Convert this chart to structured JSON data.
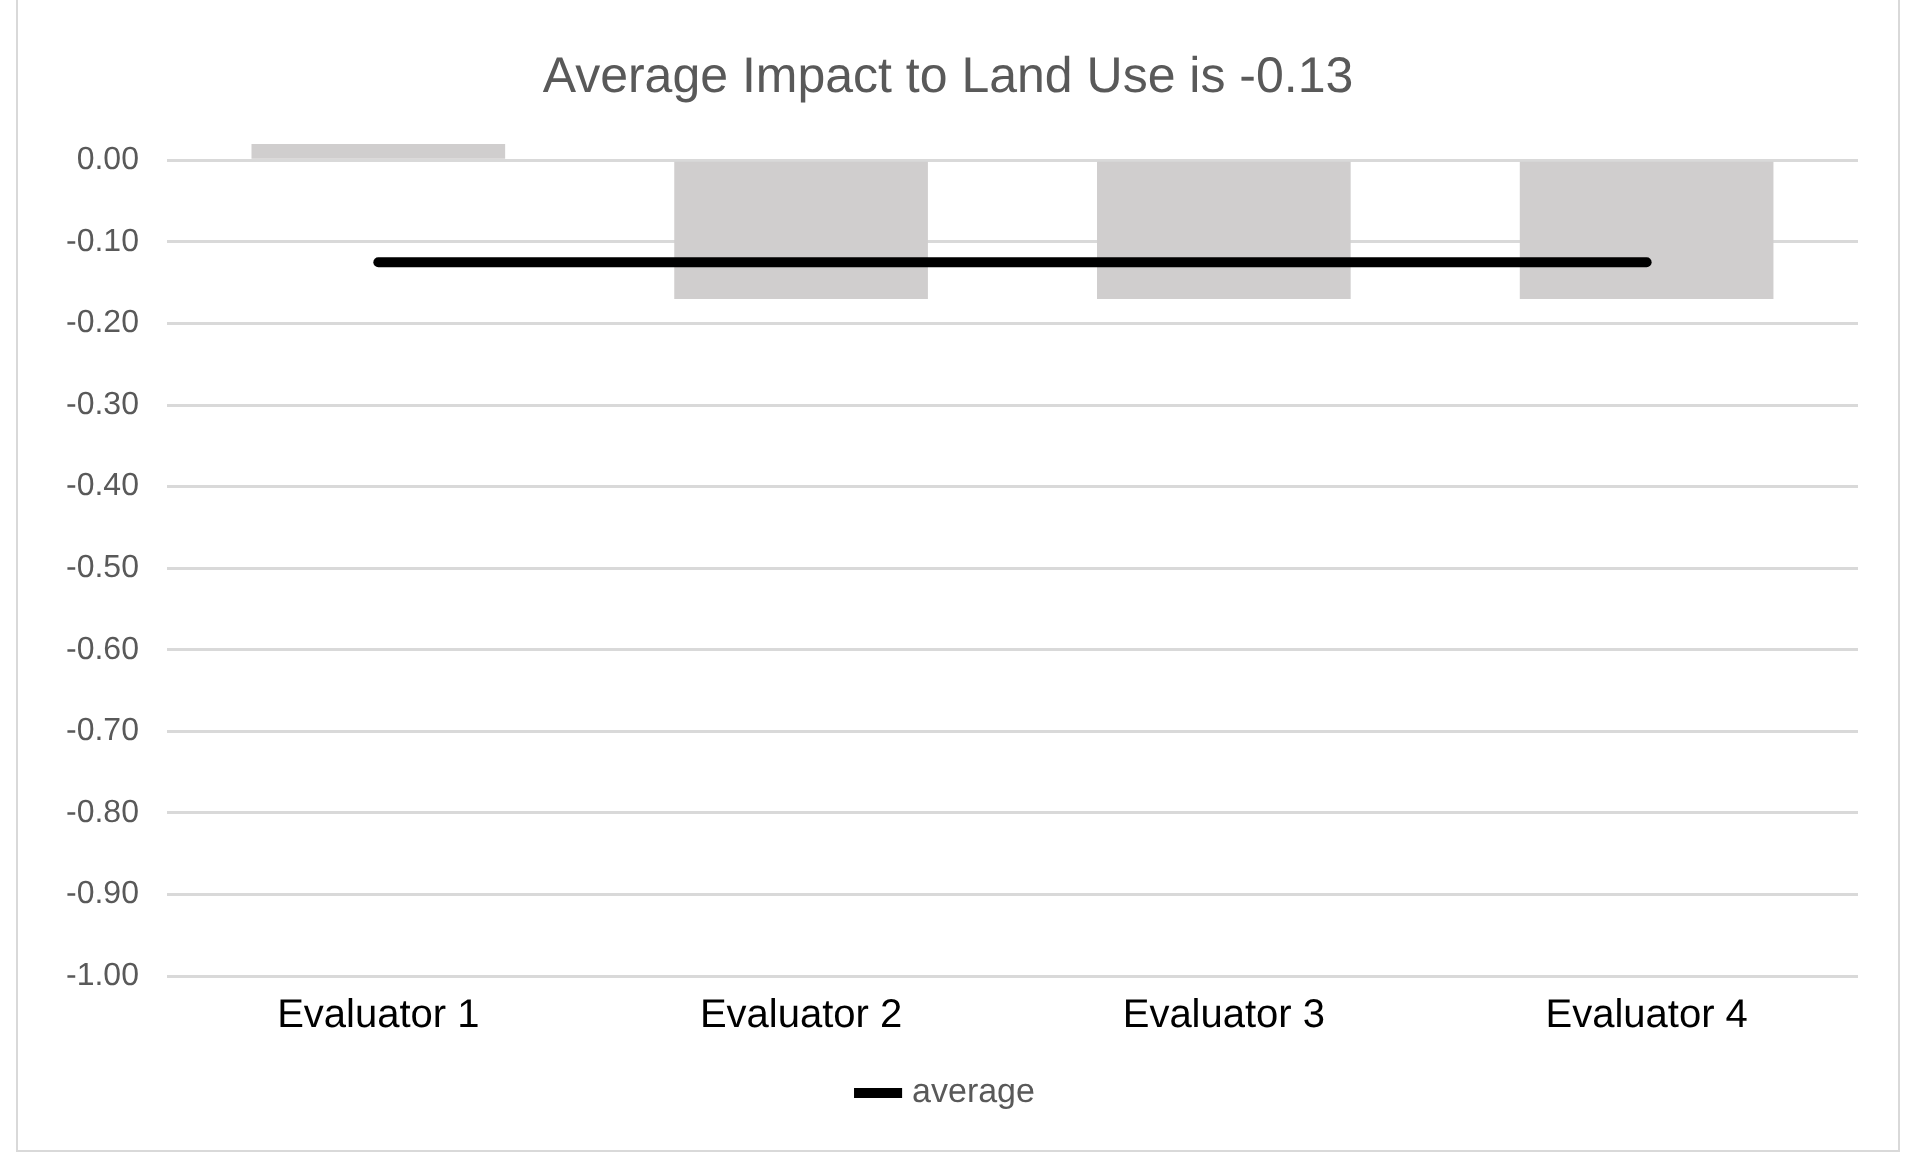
{
  "chart_data": {
    "type": "bar",
    "title": "Average Impact to Land Use is -0.13",
    "categories": [
      "Evaluator 1",
      "Evaluator 2",
      "Evaluator 3",
      "Evaluator 4"
    ],
    "series": [
      {
        "color": "#d0cece",
        "values": [
          0.02,
          -0.17,
          -0.17,
          -0.17
        ]
      },
      {
        "type": "line",
        "name": "average",
        "color": "#000000",
        "values": [
          -0.125,
          -0.125,
          -0.125,
          -0.125
        ]
      }
    ],
    "ylim": [
      -1,
      0.02
    ],
    "yticks": [
      {
        "value": 0,
        "label": "0.00"
      },
      {
        "value": -0.1,
        "label": "-0.10"
      },
      {
        "value": -0.2,
        "label": "-0.20"
      },
      {
        "value": -0.3,
        "label": "-0.30"
      },
      {
        "value": -0.4,
        "label": "-0.40"
      },
      {
        "value": -0.5,
        "label": "-0.50"
      },
      {
        "value": -0.6,
        "label": "-0.60"
      },
      {
        "value": -0.7,
        "label": "-0.70"
      },
      {
        "value": -0.8,
        "label": "-0.80"
      },
      {
        "value": -0.9,
        "label": "-0.90"
      },
      {
        "value": -1,
        "label": "-1.00"
      }
    ],
    "grid": "y",
    "legend": "bottom",
    "marker": "none"
  }
}
